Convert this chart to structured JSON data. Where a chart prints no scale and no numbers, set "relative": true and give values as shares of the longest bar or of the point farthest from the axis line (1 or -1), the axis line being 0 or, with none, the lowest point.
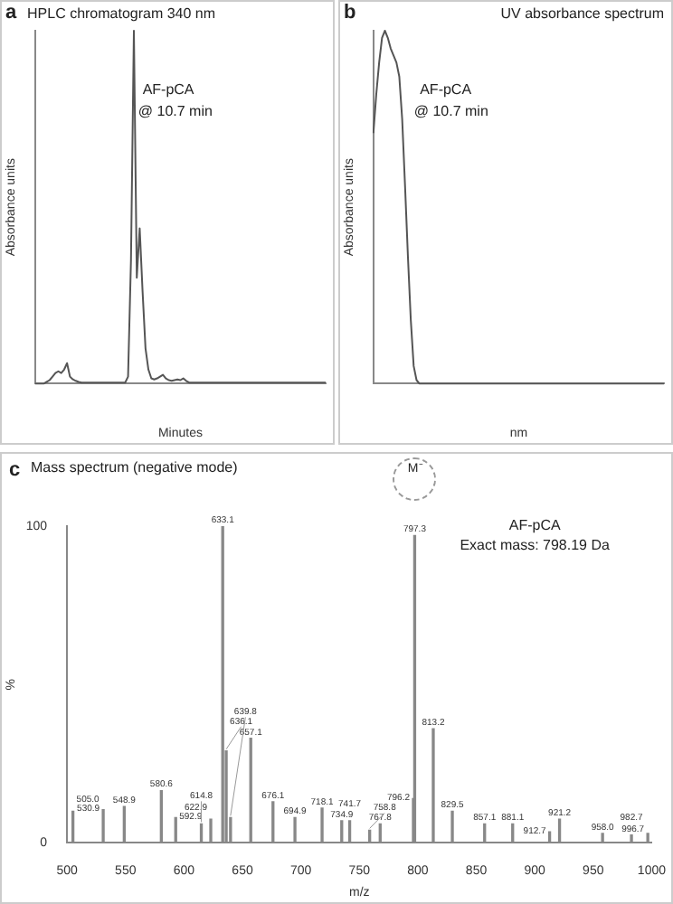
{
  "chart_data": [
    {
      "type": "line",
      "title": "HPLC chromatogram 340 nm",
      "xlabel": "Minutes",
      "ylabel": "Absorbance units",
      "annotations": [
        "a",
        "AF-pCA",
        "@ 10.7 min"
      ],
      "relative": true,
      "categories": [
        null,
        null,
        null,
        null,
        null,
        null,
        null,
        null,
        null,
        null,
        null,
        null,
        null,
        null,
        null,
        null,
        null,
        null,
        null,
        null,
        null,
        null,
        null,
        null,
        null,
        null,
        null,
        null,
        null,
        null,
        null,
        null,
        null,
        null,
        null,
        null,
        null,
        null,
        null,
        null,
        null,
        null,
        null,
        null,
        null,
        null,
        null,
        null,
        null,
        null,
        null,
        null,
        null,
        null,
        null,
        null,
        null,
        null,
        null,
        null,
        null,
        null,
        null,
        null,
        null,
        null,
        null,
        null,
        null,
        null,
        null,
        null,
        null,
        null,
        null,
        null,
        null,
        null,
        null,
        null,
        null,
        null,
        null,
        null,
        null,
        null,
        null,
        null,
        null,
        null,
        null,
        null,
        null,
        null,
        null,
        null,
        null,
        null,
        null,
        null,
        null
      ],
      "series": [
        {
          "color": "#555555",
          "values": [
            0,
            0,
            0,
            0,
            0.005,
            0.01,
            0.02,
            0.03,
            0.035,
            0.03,
            0.04,
            0.058,
            0.02,
            0.012,
            0.008,
            0.005,
            0.003,
            0.003,
            0.003,
            0.003,
            0.003,
            0.003,
            0.003,
            0.003,
            0.003,
            0.003,
            0.003,
            0.003,
            0.003,
            0.003,
            0.003,
            0.003,
            0.02,
            0.35,
            1,
            0.3,
            0.44,
            0.26,
            0.1,
            0.04,
            0.015,
            0.012,
            0.015,
            0.02,
            0.025,
            0.015,
            0.01,
            0.008,
            0.01,
            0.012,
            0.01,
            0.015,
            0.008,
            0.003,
            0.003,
            0.003,
            0.003,
            0.003,
            0.003,
            0.003,
            0.003,
            0.003,
            0.003,
            0.003,
            0.003,
            0.003,
            0.003,
            0.003,
            0.003,
            0.003,
            0.003,
            0.003,
            0.003,
            0.003,
            0.003,
            0.003,
            0.003,
            0.003,
            0.003,
            0.003,
            0.003,
            0.003,
            0.003,
            0.003,
            0.003,
            0.003,
            0.003,
            0.003,
            0.003,
            0.003,
            0.003,
            0.003,
            0.003,
            0.003,
            0.003,
            0.003,
            0.003,
            0.003,
            0.003,
            0.003,
            0.003
          ]
        }
      ]
    },
    {
      "type": "line",
      "title": "UV absorbance spectrum",
      "xlabel": "nm",
      "ylabel": "Absorbance units",
      "annotations": [
        "b",
        "AF-pCA",
        "@ 10.7 min"
      ],
      "relative": true,
      "categories": [
        null,
        null,
        null,
        null,
        null,
        null,
        null,
        null,
        null,
        null,
        null,
        null,
        null,
        null,
        null,
        null,
        null,
        null,
        null,
        null,
        null,
        null,
        null,
        null,
        null,
        null,
        null,
        null,
        null,
        null,
        null,
        null,
        null,
        null,
        null,
        null,
        null,
        null,
        null,
        null,
        null,
        null,
        null,
        null,
        null,
        null,
        null,
        null,
        null,
        null,
        null,
        null,
        null,
        null,
        null,
        null,
        null,
        null,
        null,
        null,
        null,
        null,
        null,
        null,
        null,
        null,
        null,
        null,
        null,
        null,
        null,
        null,
        null,
        null,
        null,
        null,
        null,
        null,
        null,
        null,
        null,
        null,
        null,
        null,
        null,
        null,
        null,
        null,
        null,
        null,
        null,
        null,
        null,
        null,
        null,
        null,
        null,
        null,
        null,
        null,
        null,
        null
      ],
      "series": [
        {
          "color": "#555555",
          "values": [
            0.71,
            0.82,
            0.91,
            0.98,
            1,
            0.98,
            0.95,
            0.93,
            0.91,
            0.87,
            0.75,
            0.56,
            0.36,
            0.18,
            0.05,
            0.01,
            0,
            0,
            0,
            0,
            0,
            0,
            0,
            0,
            0,
            0,
            0,
            0,
            0,
            0,
            0,
            0,
            0,
            0,
            0,
            0,
            0,
            0,
            0,
            0,
            0,
            0,
            0,
            0,
            0,
            0,
            0,
            0,
            0,
            0,
            0,
            0,
            0,
            0,
            0,
            0,
            0,
            0,
            0,
            0,
            0,
            0,
            0,
            0,
            0,
            0,
            0,
            0,
            0,
            0,
            0,
            0,
            0,
            0,
            0,
            0,
            0,
            0,
            0,
            0,
            0,
            0,
            0,
            0,
            0,
            0,
            0,
            0,
            0,
            0,
            0,
            0,
            0,
            0,
            0,
            0,
            0,
            0,
            0,
            0,
            0,
            0
          ]
        }
      ]
    },
    {
      "type": "bar",
      "title": "Mass spectrum (negative mode)",
      "xlabel": "m/z",
      "ylabel": "%",
      "color": "#888888",
      "xlim": [
        500,
        1000
      ],
      "xticks": [
        500,
        550,
        600,
        650,
        700,
        750,
        800,
        850,
        900,
        950,
        1000
      ],
      "ylim": [
        0,
        100
      ],
      "yticks": [
        0,
        100
      ],
      "x": [
        505.0,
        530.9,
        548.9,
        580.6,
        592.9,
        614.8,
        622.9,
        633.1,
        636.1,
        639.8,
        657.1,
        676.1,
        694.9,
        718.1,
        734.9,
        741.7,
        758.8,
        767.8,
        796.2,
        797.3,
        813.2,
        829.5,
        857.1,
        881.1,
        912.7,
        921.2,
        958.0,
        982.7,
        996.7
      ],
      "values": [
        10,
        10.5,
        11.5,
        16.5,
        8,
        6,
        7.5,
        100,
        29,
        8,
        33,
        13,
        8,
        11,
        7,
        7,
        4,
        6,
        14,
        97,
        36,
        10,
        6,
        6,
        3.5,
        7.5,
        3,
        2.5,
        3
      ],
      "annotations": [
        "c",
        "M⁻",
        "AF-pCA",
        "Exact mass: 798.19 Da",
        {
          "text": "505.0",
          "x": 505.0,
          "y": 10
        },
        {
          "text": "530.9",
          "x": 530.9,
          "y": 10.5
        },
        {
          "text": "548.9",
          "x": 548.9,
          "y": 11.5
        },
        {
          "text": "580.6",
          "x": 580.6,
          "y": 16.5
        },
        {
          "text": "592.9",
          "x": 592.9,
          "y": 8
        },
        {
          "text": "614.8",
          "x": 614.8,
          "y": 6
        },
        {
          "text": "622.9",
          "x": 622.9,
          "y": 7.5
        },
        {
          "text": "633.1",
          "x": 633.1,
          "y": 100
        },
        {
          "text": "636.1",
          "x": 636.1,
          "y": 29
        },
        {
          "text": "639.8",
          "x": 639.8,
          "y": 8
        },
        {
          "text": "657.1",
          "x": 657.1,
          "y": 33
        },
        {
          "text": "676.1",
          "x": 676.1,
          "y": 13
        },
        {
          "text": "694.9",
          "x": 694.9,
          "y": 8
        },
        {
          "text": "718.1",
          "x": 718.1,
          "y": 11
        },
        {
          "text": "734.9",
          "x": 734.9,
          "y": 7
        },
        {
          "text": "741.7",
          "x": 741.7,
          "y": 7
        },
        {
          "text": "758.8",
          "x": 758.8,
          "y": 4
        },
        {
          "text": "767.8",
          "x": 767.8,
          "y": 6
        },
        {
          "text": "796.2",
          "x": 796.2,
          "y": 14
        },
        {
          "text": "797.3",
          "x": 797.3,
          "y": 97
        },
        {
          "text": "813.2",
          "x": 813.2,
          "y": 36
        },
        {
          "text": "829.5",
          "x": 829.5,
          "y": 10
        },
        {
          "text": "857.1",
          "x": 857.1,
          "y": 6
        },
        {
          "text": "881.1",
          "x": 881.1,
          "y": 6
        },
        {
          "text": "912.7",
          "x": 912.7,
          "y": 3.5
        },
        {
          "text": "921.2",
          "x": 921.2,
          "y": 7.5
        },
        {
          "text": "958.0",
          "x": 958.0,
          "y": 3
        },
        {
          "text": "982.7",
          "x": 982.7,
          "y": 2.5
        },
        {
          "text": "996.7",
          "x": 996.7,
          "y": 3
        }
      ]
    }
  ]
}
